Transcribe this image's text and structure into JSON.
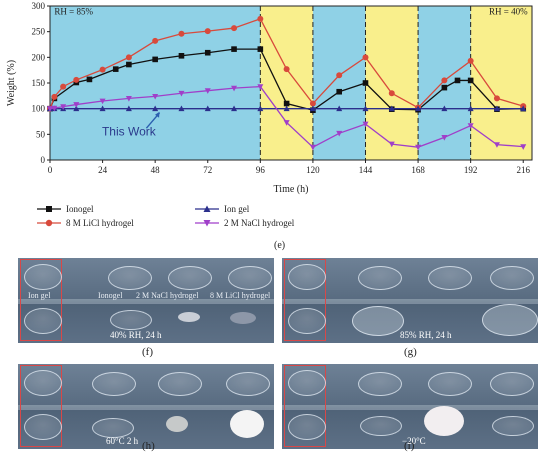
{
  "chart_data": {
    "type": "line",
    "xlabel": "Time (h)",
    "ylabel": "Weight (%)",
    "xlim": [
      0,
      220
    ],
    "ylim": [
      0,
      300
    ],
    "xticks": [
      0,
      24,
      48,
      72,
      96,
      120,
      144,
      168,
      192,
      216
    ],
    "yticks": [
      0,
      50,
      100,
      150,
      200,
      250,
      300
    ],
    "phases": [
      {
        "start": 0,
        "end": 96,
        "color": "#8fd1e6"
      },
      {
        "start": 96,
        "end": 120,
        "color": "#f9ef8c"
      },
      {
        "start": 120,
        "end": 144,
        "color": "#8fd1e6"
      },
      {
        "start": 144,
        "end": 168,
        "color": "#f9ef8c"
      },
      {
        "start": 168,
        "end": 192,
        "color": "#8fd1e6"
      },
      {
        "start": 192,
        "end": 220,
        "color": "#f9ef8c"
      }
    ],
    "annotations": {
      "rh_high": "RH = 85%",
      "rh_low": "RH = 40%",
      "this_work": "This Work"
    },
    "series": [
      {
        "name": "Ionogel",
        "color": "#111111",
        "marker": "square",
        "x": [
          0,
          2,
          12,
          18,
          30,
          36,
          48,
          60,
          72,
          84,
          96,
          108,
          120,
          132,
          144,
          156,
          168,
          180,
          186,
          192,
          204,
          216
        ],
        "y": [
          100,
          120,
          151,
          157,
          177,
          186,
          196,
          203,
          209,
          216,
          216,
          110,
          97,
          133,
          150,
          99,
          98,
          141,
          155,
          155,
          99,
          100
        ]
      },
      {
        "name": "8 M LiCl hydrogel",
        "color": "#d84a3c",
        "marker": "circle",
        "x": [
          0,
          2,
          6,
          12,
          24,
          36,
          48,
          60,
          72,
          84,
          96,
          108,
          120,
          132,
          144,
          156,
          168,
          180,
          192,
          204,
          216
        ],
        "y": [
          100,
          123,
          143,
          156,
          176,
          200,
          232,
          246,
          251,
          257,
          275,
          177,
          110,
          165,
          200,
          130,
          102,
          155,
          193,
          120,
          105
        ]
      },
      {
        "name": "Ion gel",
        "color": "#2b2f8c",
        "marker": "triangle-up",
        "x": [
          0,
          2,
          6,
          12,
          24,
          36,
          48,
          60,
          72,
          84,
          96,
          108,
          120,
          132,
          144,
          156,
          168,
          180,
          192,
          204,
          216
        ],
        "y": [
          100,
          100,
          100,
          100,
          100,
          100,
          100,
          100,
          100,
          100,
          100,
          100,
          100,
          100,
          100,
          100,
          100,
          100,
          100,
          100,
          100
        ]
      },
      {
        "name": "2 M NaCl hydrogel",
        "color": "#a03fc9",
        "marker": "triangle-down",
        "x": [
          0,
          2,
          6,
          12,
          24,
          36,
          48,
          60,
          72,
          84,
          96,
          108,
          120,
          132,
          144,
          156,
          168,
          180,
          192,
          204,
          216
        ],
        "y": [
          100,
          101,
          104,
          108,
          115,
          120,
          124,
          130,
          135,
          140,
          143,
          73,
          25,
          52,
          70,
          31,
          25,
          44,
          67,
          30,
          26
        ]
      }
    ]
  },
  "legend": {
    "ionogel": "Ionogel",
    "licl": "8 M LiCl hydrogel",
    "iongel": "Ion gel",
    "nacl": "2 M NaCl hydrogel"
  },
  "labels": {
    "e": "(e)",
    "f": "(f)",
    "g": "(g)",
    "h": "(h)",
    "i": "(i)"
  },
  "panel_f": {
    "top_labels": [
      "Ion gel",
      "Ionogel",
      "2 M NaCl hydrogel",
      "8 M LiCl hydrogel"
    ],
    "caption": "40% RH, 24 h"
  },
  "panel_g": {
    "caption": "85% RH, 24 h"
  },
  "panel_h": {
    "caption": "60°C 2 h"
  },
  "panel_i": {
    "caption": "−20°C"
  }
}
